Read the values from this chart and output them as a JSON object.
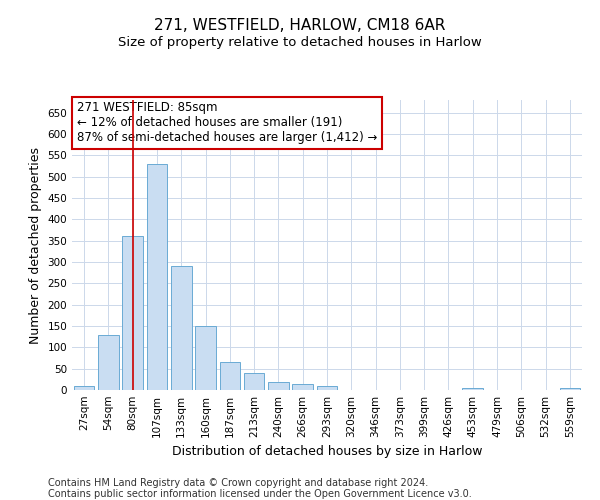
{
  "title1": "271, WESTFIELD, HARLOW, CM18 6AR",
  "title2": "Size of property relative to detached houses in Harlow",
  "xlabel": "Distribution of detached houses by size in Harlow",
  "ylabel": "Number of detached properties",
  "categories": [
    "27sqm",
    "54sqm",
    "80sqm",
    "107sqm",
    "133sqm",
    "160sqm",
    "187sqm",
    "213sqm",
    "240sqm",
    "266sqm",
    "293sqm",
    "320sqm",
    "346sqm",
    "373sqm",
    "399sqm",
    "426sqm",
    "453sqm",
    "479sqm",
    "506sqm",
    "532sqm",
    "559sqm"
  ],
  "values": [
    10,
    130,
    360,
    530,
    290,
    150,
    65,
    40,
    18,
    13,
    10,
    0,
    0,
    0,
    0,
    0,
    5,
    0,
    0,
    0,
    5
  ],
  "bar_color": "#c9ddf2",
  "bar_edge_color": "#6aaad4",
  "grid_color": "#ccd8ea",
  "background_color": "#ffffff",
  "vline_x": 2.0,
  "vline_color": "#cc0000",
  "annotation_text": "271 WESTFIELD: 85sqm\n← 12% of detached houses are smaller (191)\n87% of semi-detached houses are larger (1,412) →",
  "annotation_box_color": "#ffffff",
  "annotation_edge_color": "#cc0000",
  "ylim": [
    0,
    680
  ],
  "yticks": [
    0,
    50,
    100,
    150,
    200,
    250,
    300,
    350,
    400,
    450,
    500,
    550,
    600,
    650
  ],
  "footer1": "Contains HM Land Registry data © Crown copyright and database right 2024.",
  "footer2": "Contains public sector information licensed under the Open Government Licence v3.0.",
  "title_fontsize": 11,
  "subtitle_fontsize": 9.5,
  "tick_fontsize": 7.5,
  "label_fontsize": 9,
  "footer_fontsize": 7,
  "annotation_fontsize": 8.5
}
